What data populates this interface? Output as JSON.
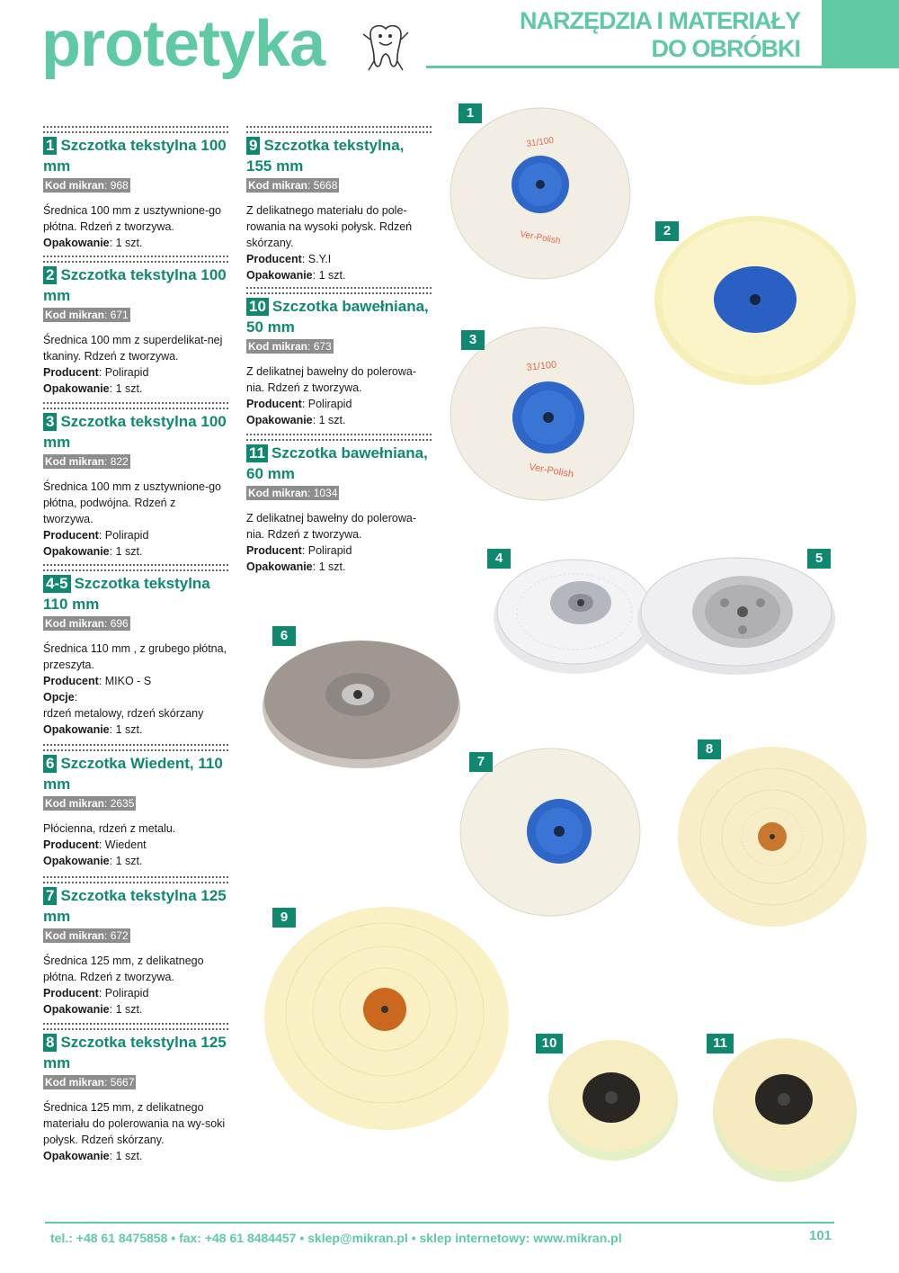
{
  "header": {
    "brand": "protetyka",
    "section_line1": "NARZĘDZIA I MATERIAŁY",
    "section_line2": "DO OBRÓBKI"
  },
  "code_label": "Kod mikran",
  "items": [
    {
      "num": "1",
      "title": "Szczotka tekstylna 100 mm",
      "code": "968",
      "lines": [
        {
          "text": "Średnica 100 mm z usztywnione-go płótna. Rdzeń z tworzywa."
        },
        {
          "label": "Opakowanie",
          "text": "1 szt."
        }
      ]
    },
    {
      "num": "2",
      "title": "Szczotka  tekstylna 100 mm",
      "code": "671",
      "lines": [
        {
          "text": "Średnica 100 mm z superdelikat-nej tkaniny. Rdzeń z tworzywa."
        },
        {
          "label": "Producent",
          "text": "Polirapid"
        },
        {
          "label": "Opakowanie",
          "text": "1 szt."
        }
      ]
    },
    {
      "num": "3",
      "title": "Szczotka tekstylna 100 mm",
      "code": "822",
      "lines": [
        {
          "text": "Średnica 100 mm z usztywnione-go płótna, podwójna. Rdzeń z tworzywa."
        },
        {
          "label": "Producent",
          "text": "Polirapid"
        },
        {
          "label": "Opakowanie",
          "text": "1 szt."
        }
      ]
    },
    {
      "num": "4-5",
      "title": "Szczotka tekstylna 110 mm",
      "code": "696",
      "lines": [
        {
          "text": "Średnica 110 mm , z grubego płótna, przeszyta."
        },
        {
          "label": "Producent",
          "text": "MIKO - S"
        },
        {
          "label": "Opcje",
          "text": ""
        },
        {
          "text": "rdzeń metalowy, rdzeń skórzany"
        },
        {
          "label": "Opakowanie",
          "text": "1 szt."
        }
      ]
    },
    {
      "num": "6",
      "title": "Szczotka Wiedent, 110 mm",
      "code": "2635",
      "lines": [
        {
          "text": "Płócienna, rdzeń z metalu."
        },
        {
          "label": "Producent",
          "text": "Wiedent"
        },
        {
          "label": "Opakowanie",
          "text": "1 szt."
        }
      ]
    },
    {
      "num": "7",
      "title": "Szczotka tekstylna 125 mm",
      "code": "672",
      "lines": [
        {
          "text": "Średnica 125 mm, z delikatnego płótna. Rdzeń z tworzywa."
        },
        {
          "label": "Producent",
          "text": "Polirapid"
        },
        {
          "label": "Opakowanie",
          "text": "1 szt."
        }
      ]
    },
    {
      "num": "8",
      "title": "Szczotka tekstylna 125 mm",
      "code": "5667",
      "lines": [
        {
          "text": " Średnica 125 mm, z delikatnego materiału do polerowania na wy-soki połysk. Rdzeń skórzany."
        },
        {
          "label": "Opakowanie",
          "text": "1 szt."
        }
      ]
    },
    {
      "num": "9",
      "title": "Szczotka tekstylna, 155 mm",
      "code": "5668",
      "lines": [
        {
          "text": "Z delikatnego materiału do pole-rowania na wysoki połysk. Rdzeń skórzany."
        },
        {
          "label": "Producent",
          "text": "S.Y.I"
        },
        {
          "label": "Opakowanie",
          "text": "1 szt."
        }
      ]
    },
    {
      "num": "10",
      "title": "Szczotka bawełniana, 50 mm",
      "code": "673",
      "lines": [
        {
          "text": "Z delikatnej bawełny do polerowa-nia. Rdzeń z tworzywa."
        },
        {
          "label": "Producent",
          "text": "Polirapid"
        },
        {
          "label": "Opakowanie",
          "text": "1 szt."
        }
      ]
    },
    {
      "num": "11",
      "title": "Szczotka bawełniana, 60 mm",
      "code": "1034",
      "lines": [
        {
          "text": "Z delikatnej bawełny do polerowa-nia. Rdzeń z tworzywa."
        },
        {
          "label": "Producent",
          "text": "Polirapid"
        },
        {
          "label": "Opakowanie",
          "text": "1 szt."
        }
      ]
    }
  ],
  "photos": [
    {
      "badge": "1",
      "print": "31/100",
      "print2": "Ver-Polish"
    },
    {
      "badge": "2"
    },
    {
      "badge": "3",
      "print": "31/100",
      "print2": "Ver-Polish"
    },
    {
      "badge": "4"
    },
    {
      "badge": "5"
    },
    {
      "badge": "6"
    },
    {
      "badge": "7"
    },
    {
      "badge": "8"
    },
    {
      "badge": "9"
    },
    {
      "badge": "10"
    },
    {
      "badge": "11"
    }
  ],
  "footer": {
    "contact": "tel.: +48 61 8475858 • fax: +48 61 8484457 • sklep@mikran.pl • sklep internetowy: www.mikran.pl",
    "page_number": "101"
  },
  "colors": {
    "brand_green": "#5ec9a2",
    "badge_green": "#10876f",
    "code_grey": "#8d8d8d"
  },
  "icons": [
    "tooth-mascot-icon"
  ]
}
